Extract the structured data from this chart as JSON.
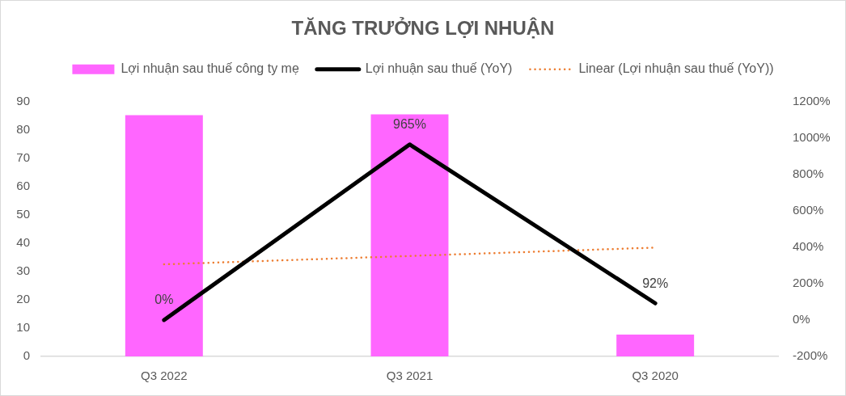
{
  "chart_data": {
    "type": "bar",
    "title": "TĂNG TRƯỞNG LỢI NHUẬN",
    "categories": [
      "Q3 2022",
      "Q3 2021",
      "Q3 2020"
    ],
    "series": [
      {
        "name": "Lợi nhuận sau thuế công ty mẹ",
        "color": "#ff66ff",
        "values": [
          85.2,
          85.5,
          7.7
        ]
      },
      {
        "name": "Lợi nhuận sau thuế (YoY)",
        "type": "line",
        "axis": "y2",
        "color": "#000000",
        "values": [
          0,
          965,
          92
        ],
        "value_labels": [
          "0%",
          "965%",
          "92%"
        ],
        "line_style": "solid"
      },
      {
        "name": "Linear (Lợi nhuận sau thuế (YoY))",
        "type": "line",
        "axis": "y2",
        "color": "#ed7d31",
        "values": [
          306,
          352,
          398
        ],
        "line_style": "dotted"
      }
    ],
    "ylim": [
      0,
      90
    ],
    "yticks": [
      0,
      10,
      20,
      30,
      40,
      50,
      60,
      70,
      80,
      90
    ],
    "y2lim": [
      -200,
      1200
    ],
    "y2ticks": [
      {
        "value": -200,
        "label": "-200%"
      },
      {
        "value": 0,
        "label": "0%"
      },
      {
        "value": 200,
        "label": "200%"
      },
      {
        "value": 400,
        "label": "400%"
      },
      {
        "value": 600,
        "label": "600%"
      },
      {
        "value": 800,
        "label": "800%"
      },
      {
        "value": 1000,
        "label": "1000%"
      },
      {
        "value": 1200,
        "label": "1200%"
      }
    ],
    "legend": "top"
  }
}
